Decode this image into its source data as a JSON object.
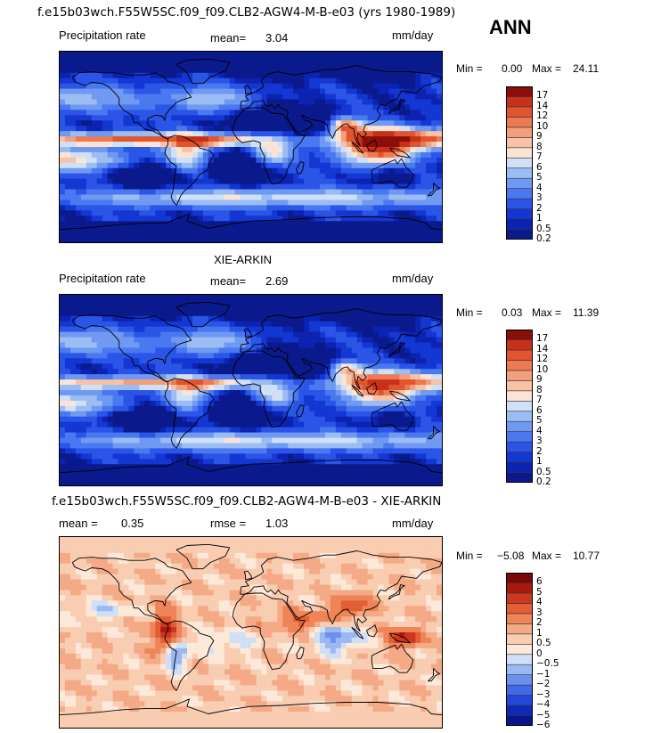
{
  "case_title": "f.e15b03wch.F55W5SC.f09_f09.CLB2-AGW4-M-B-e03 (yrs 1980-1989)",
  "season": "ANN",
  "panels": [
    {
      "title": "",
      "variable": "Precipitation rate",
      "mean_label": "mean=",
      "mean": "3.04",
      "units": "mm/day",
      "min_label": "Min =",
      "min": "0.00",
      "max_label": "Max =",
      "max": "24.11",
      "levels": [
        "17",
        "14",
        "12",
        "10",
        "9",
        "8",
        "7",
        "6",
        "5",
        "4",
        "3",
        "2",
        "1",
        "0.5",
        "0.2"
      ]
    },
    {
      "title": "XIE-ARKIN",
      "variable": "Precipitation rate",
      "mean_label": "mean=",
      "mean": "2.69",
      "units": "mm/day",
      "min_label": "Min =",
      "min": "0.03",
      "max_label": "Max =",
      "max": "11.39",
      "levels": [
        "17",
        "14",
        "12",
        "10",
        "9",
        "8",
        "7",
        "6",
        "5",
        "4",
        "3",
        "2",
        "1",
        "0.5",
        "0.2"
      ]
    },
    {
      "title": "f.e15b03wch.F55W5SC.f09_f09.CLB2-AGW4-M-B-e03 - XIE-ARKIN",
      "mean_label": "mean =",
      "mean": "0.35",
      "rmse_label": "rmse =",
      "rmse": "1.03",
      "units": "mm/day",
      "min_label": "Min =",
      "min": "−5.08",
      "max_label": "Max =",
      "max": "10.77",
      "levels": [
        "6",
        "5",
        "4",
        "3",
        "2",
        "1",
        "0.5",
        "0",
        "−0.5",
        "−1",
        "−2",
        "−3",
        "−4",
        "−5",
        "−6"
      ]
    }
  ],
  "colors": {
    "abs_scale": [
      "#0a1a8c",
      "#0c22b0",
      "#1436d2",
      "#2a55e6",
      "#4a78f0",
      "#7099f2",
      "#9cbcf4",
      "#cfe0f7",
      "#fbe4d6",
      "#f7c2a6",
      "#f2a07c",
      "#ec7a54",
      "#e0542e",
      "#c8301a",
      "#8a0e0a"
    ],
    "diff_scale": [
      "#08168a",
      "#0e2ab8",
      "#2248d8",
      "#3f6ae8",
      "#6b90ef",
      "#9cb8f3",
      "#cfdff7",
      "#fde9da",
      "#f9cdb2",
      "#f4aa86",
      "#ee8458",
      "#e25e34",
      "#cb381e",
      "#a81a10",
      "#7a0808"
    ]
  },
  "chart_data": [
    {
      "type": "heatmap",
      "title": "",
      "projection": "global cylindrical equidistant, 180W-180E, 90S-90N",
      "mean": 3.04,
      "min": 0.0,
      "max": 24.11,
      "units": "mm/day",
      "contour_levels": [
        0.2,
        0.5,
        1,
        2,
        3,
        4,
        5,
        6,
        7,
        8,
        9,
        10,
        12,
        14,
        17
      ]
    },
    {
      "type": "heatmap",
      "title": "XIE-ARKIN",
      "mean": 2.69,
      "min": 0.03,
      "max": 11.39,
      "units": "mm/day",
      "contour_levels": [
        0.2,
        0.5,
        1,
        2,
        3,
        4,
        5,
        6,
        7,
        8,
        9,
        10,
        12,
        14,
        17
      ]
    },
    {
      "type": "heatmap",
      "title": "f.e15b03wch.F55W5SC.f09_f09.CLB2-AGW4-M-B-e03 - XIE-ARKIN",
      "mean": 0.35,
      "rmse": 1.03,
      "min": -5.08,
      "max": 10.77,
      "units": "mm/day",
      "contour_levels": [
        -6,
        -5,
        -4,
        -3,
        -2,
        -1,
        -0.5,
        0,
        0.5,
        1,
        2,
        3,
        4,
        5,
        6
      ]
    }
  ]
}
